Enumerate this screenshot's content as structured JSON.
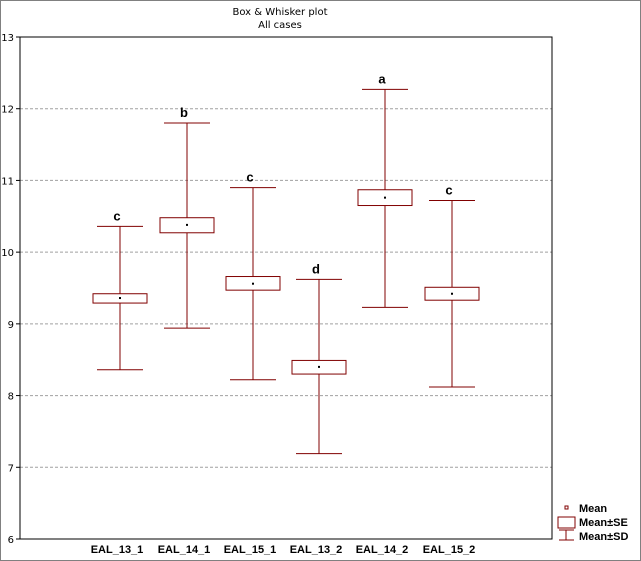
{
  "chart_data": {
    "type": "box",
    "title": "Box & Whisker plot",
    "subtitle": "All cases",
    "categories": [
      "EAL_13_1",
      "EAL_14_1",
      "EAL_15_1",
      "EAL_13_2",
      "EAL_14_2",
      "EAL_15_2"
    ],
    "mean": [
      9.36,
      10.38,
      9.56,
      8.4,
      10.76,
      9.42
    ],
    "se_low": [
      9.29,
      10.27,
      9.47,
      8.3,
      10.65,
      9.33
    ],
    "se_high": [
      9.42,
      10.48,
      9.66,
      8.49,
      10.87,
      9.51
    ],
    "sd_low": [
      8.36,
      8.94,
      8.22,
      7.19,
      9.23,
      8.12
    ],
    "sd_high": [
      10.36,
      11.8,
      10.9,
      9.62,
      12.27,
      10.72
    ],
    "group_letters": [
      "c",
      "b",
      "c",
      "d",
      "a",
      "c"
    ],
    "ylim": [
      6,
      13
    ],
    "yticks": [
      6,
      7,
      8,
      9,
      10,
      11,
      12,
      13
    ],
    "grid": true,
    "legend": {
      "position": "bottom-right",
      "items": [
        "Mean",
        "Mean±SE",
        "Mean±SD"
      ]
    },
    "color": "#800000"
  }
}
